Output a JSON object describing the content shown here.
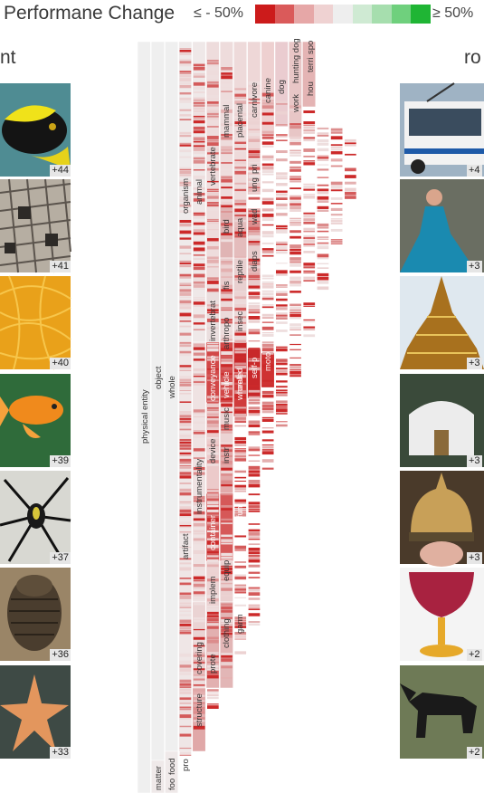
{
  "legend": {
    "title": "Performane Change",
    "low_label": "≤ - 50%",
    "high_label": "≥ 50%",
    "colors": [
      "#cc1b1b",
      "#da5a5a",
      "#e6a7a7",
      "#efd2d2",
      "#eeeeee",
      "#cfead3",
      "#a6deae",
      "#6fd07d",
      "#1fb534"
    ]
  },
  "left_heading": "nt",
  "right_heading": "ro",
  "left_images": [
    {
      "name": "fish-image",
      "badge": "+44"
    },
    {
      "name": "crossword-image",
      "badge": "+41"
    },
    {
      "name": "noodles-image",
      "badge": "+40"
    },
    {
      "name": "goldfish-image",
      "badge": "+39"
    },
    {
      "name": "spider-image",
      "badge": "+37"
    },
    {
      "name": "trilobite-image",
      "badge": "+36"
    },
    {
      "name": "starfish-image",
      "badge": "+33"
    }
  ],
  "right_images": [
    {
      "name": "trolleybus-image",
      "badge": "+4"
    },
    {
      "name": "gown-image",
      "badge": "+3"
    },
    {
      "name": "pagoda-image",
      "badge": "+3"
    },
    {
      "name": "yurt-image",
      "badge": "+3"
    },
    {
      "name": "helmet-image",
      "badge": "+3"
    },
    {
      "name": "goblet-image",
      "badge": "+2"
    },
    {
      "name": "dog-image",
      "badge": "+2"
    }
  ],
  "tree_labels": {
    "physical_entity": "physical entity",
    "object": "object",
    "whole": "whole",
    "matter": "matter",
    "food1": "foo",
    "food2": "food",
    "pro": "pro",
    "organism": "organism",
    "artifact": "artifact",
    "animal": "animal",
    "instrumentality": "instrumentality",
    "covering": "covering",
    "structure": "structure",
    "vertebrate": "vertebrate",
    "invertebrate": "invertebrat",
    "conveyance": "conveyance",
    "device": "device",
    "container": "container",
    "implement": "implem",
    "protective": "prote",
    "mammal": "mammal",
    "bird": "bird",
    "fish": "fis",
    "arthropod": "arthropo",
    "vehicle": "vehicle",
    "music": "music",
    "instrument": "instr",
    "equipment": "equip",
    "clothing": "clothing",
    "placental": "placental",
    "aquatic": "aqua",
    "reptile": "reptile",
    "insect": "insec",
    "craft": "craf",
    "wheeled": "wheeled",
    "vessel": "ves",
    "furn": "fun",
    "garment": "garm",
    "carnivore": "carnivore",
    "ungulate": "ung",
    "primate": "pri",
    "wad": "wad",
    "diapsid": "diaps",
    "self_propelled": "self-p",
    "canine": "canine",
    "motor": "moto",
    "dog": "dog",
    "working": "work",
    "hunting_dog": "hunting dog",
    "hound": "hou",
    "terrier": "terri",
    "spo": "spo"
  }
}
